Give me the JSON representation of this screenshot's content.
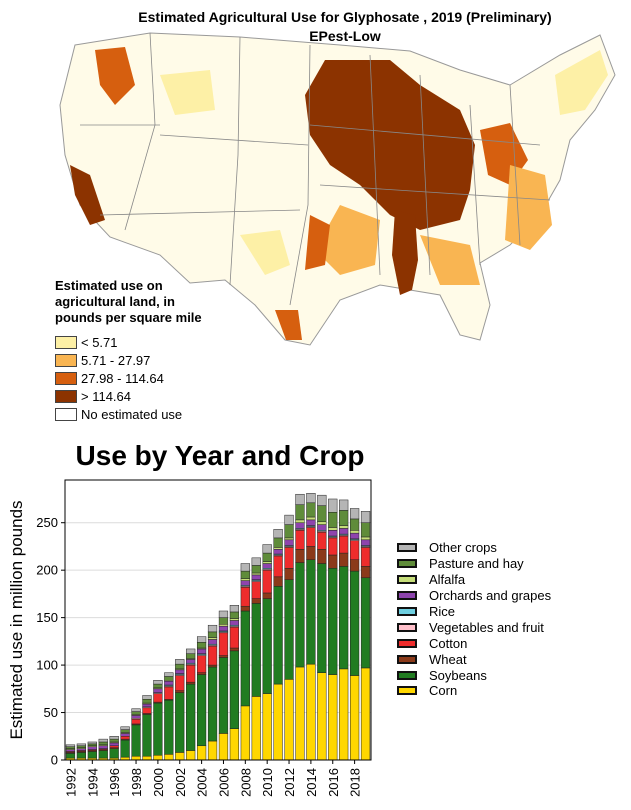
{
  "map": {
    "title": "Estimated Agricultural Use for Glyphosate , 2019 (Preliminary)",
    "subtitle": "EPest-Low",
    "legend": {
      "title": "Estimated use on agricultural land, in pounds per square mile",
      "items": [
        {
          "label": "< 5.71",
          "color": "#fdf0a6"
        },
        {
          "label": "5.71 - 27.97",
          "color": "#f9b552"
        },
        {
          "label": "27.98 - 114.64",
          "color": "#d65f0f"
        },
        {
          "label": "> 114.64",
          "color": "#8c3300"
        },
        {
          "label": "No estimated use",
          "color": "#ffffff"
        }
      ]
    }
  },
  "chart_data": {
    "type": "bar",
    "stacked": true,
    "title": "Use by Year and Crop",
    "xlabel": "",
    "ylabel": "Estimated use in million pounds",
    "ylim": [
      0,
      295
    ],
    "yticks": [
      0,
      50,
      100,
      150,
      200,
      250
    ],
    "grid": true,
    "legend_position": "right",
    "x": [
      1992,
      1993,
      1994,
      1995,
      1996,
      1997,
      1998,
      1999,
      2000,
      2001,
      2002,
      2003,
      2004,
      2005,
      2006,
      2007,
      2008,
      2009,
      2010,
      2011,
      2012,
      2013,
      2014,
      2015,
      2016,
      2017,
      2018,
      2019
    ],
    "xtick_labels": [
      "1992",
      "1994",
      "1996",
      "1998",
      "2000",
      "2002",
      "2004",
      "2006",
      "2008",
      "2010",
      "2012",
      "2014",
      "2016",
      "2018"
    ],
    "series": [
      {
        "name": "Corn",
        "color": "#ffd700",
        "values": [
          2,
          2,
          2,
          2,
          2,
          3,
          4,
          4,
          5,
          6,
          8,
          10,
          15,
          20,
          28,
          33,
          57,
          67,
          70,
          80,
          85,
          98,
          101,
          92,
          90,
          96,
          89,
          97
        ]
      },
      {
        "name": "Soybeans",
        "color": "#217c21",
        "values": [
          5,
          6,
          7,
          8,
          10,
          18,
          33,
          44,
          55,
          57,
          63,
          70,
          75,
          78,
          80,
          82,
          100,
          98,
          100,
          103,
          105,
          110,
          110,
          115,
          112,
          108,
          110,
          95
        ]
      },
      {
        "name": "Wheat",
        "color": "#8b3a1a",
        "values": [
          1,
          1,
          1,
          1,
          1,
          1,
          1,
          1,
          1,
          1,
          2,
          2,
          2,
          2,
          2,
          3,
          5,
          5,
          6,
          10,
          12,
          14,
          14,
          15,
          14,
          14,
          12,
          12
        ]
      },
      {
        "name": "Cotton",
        "color": "#ee2c2c",
        "values": [
          1,
          1,
          1,
          1,
          2,
          3,
          5,
          6,
          9,
          13,
          16,
          18,
          18,
          20,
          24,
          22,
          20,
          18,
          24,
          22,
          22,
          20,
          20,
          18,
          18,
          18,
          20,
          20
        ]
      },
      {
        "name": "Vegetables and fruit",
        "color": "#ffc0cb",
        "values": [
          0,
          0,
          0,
          0,
          0,
          0,
          1,
          1,
          1,
          1,
          1,
          1,
          1,
          1,
          1,
          1,
          1,
          1,
          1,
          1,
          1,
          1,
          1,
          1,
          1,
          1,
          1,
          1
        ]
      },
      {
        "name": "Rice",
        "color": "#6ecfe0",
        "values": [
          0,
          0,
          0,
          0,
          0,
          0,
          0,
          0,
          0,
          1,
          1,
          1,
          1,
          1,
          1,
          1,
          1,
          1,
          1,
          1,
          1,
          1,
          1,
          1,
          1,
          1,
          1,
          1
        ]
      },
      {
        "name": "Orchards and grapes",
        "color": "#8e44ad",
        "values": [
          2,
          2,
          3,
          3,
          3,
          3,
          3,
          3,
          4,
          4,
          4,
          4,
          5,
          5,
          5,
          5,
          5,
          5,
          5,
          5,
          6,
          6,
          6,
          6,
          6,
          6,
          6,
          6
        ]
      },
      {
        "name": "Alfalfa",
        "color": "#c6de7a",
        "values": [
          1,
          1,
          1,
          1,
          1,
          1,
          1,
          1,
          1,
          1,
          1,
          1,
          1,
          2,
          2,
          2,
          2,
          2,
          2,
          2,
          2,
          3,
          3,
          3,
          3,
          3,
          3,
          3
        ]
      },
      {
        "name": "Pasture and hay",
        "color": "#5f8c3a",
        "values": [
          2,
          2,
          2,
          3,
          3,
          3,
          3,
          4,
          4,
          4,
          5,
          5,
          6,
          6,
          7,
          7,
          8,
          8,
          9,
          10,
          14,
          16,
          15,
          17,
          16,
          16,
          12,
          15
        ]
      },
      {
        "name": "Other crops",
        "color": "#b5b5b5",
        "values": [
          2,
          2,
          2,
          3,
          3,
          3,
          3,
          4,
          4,
          4,
          5,
          5,
          6,
          7,
          7,
          7,
          8,
          8,
          9,
          9,
          10,
          11,
          10,
          11,
          14,
          11,
          11,
          12
        ]
      }
    ]
  }
}
